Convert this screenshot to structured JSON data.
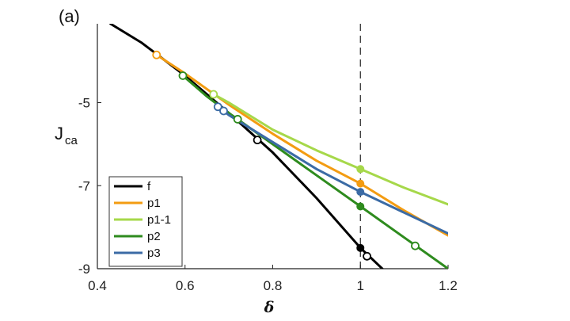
{
  "panel_label": "(a)",
  "chart_data": {
    "type": "line",
    "xlabel": "δ",
    "ylabel": "J",
    "ylabel_subscript": "ca",
    "xlim": [
      0.4,
      1.2
    ],
    "ylim": [
      -9,
      -3.1
    ],
    "xticks": [
      0.4,
      0.6,
      0.8,
      1,
      1.2
    ],
    "xtick_labels": [
      "0.4",
      "0.6",
      "0.8",
      "1",
      "1.2"
    ],
    "yticks": [
      -9,
      -7,
      -5
    ],
    "ytick_labels": [
      "-9",
      "-7",
      "-5"
    ],
    "reference_line": {
      "x": 1,
      "style": "dashed"
    },
    "legend_position": "bottom-left",
    "series": [
      {
        "name": "f",
        "color": "#000000",
        "x": [
          0.43,
          0.5,
          0.6,
          0.7,
          0.8,
          0.9,
          1.0,
          1.05
        ],
        "y": [
          -3.1,
          -3.55,
          -4.35,
          -5.25,
          -6.2,
          -7.3,
          -8.5,
          -9.0
        ],
        "open_markers": [
          {
            "x": 0.765,
            "y": -5.9
          },
          {
            "x": 1.015,
            "y": -8.7
          }
        ],
        "filled_markers": [
          {
            "x": 1.0,
            "y": -8.5
          }
        ]
      },
      {
        "name": "p1",
        "color": "#f39c12",
        "x": [
          0.535,
          0.6,
          0.7,
          0.8,
          0.9,
          1.0,
          1.1,
          1.2
        ],
        "y": [
          -3.85,
          -4.3,
          -5.05,
          -5.75,
          -6.4,
          -6.95,
          -7.6,
          -8.2
        ],
        "open_markers": [
          {
            "x": 0.535,
            "y": -3.85
          }
        ],
        "filled_markers": [
          {
            "x": 1.0,
            "y": -6.95
          }
        ]
      },
      {
        "name": "p1-1",
        "color": "#a6d84a",
        "x": [
          0.665,
          0.7,
          0.8,
          0.9,
          1.0,
          1.1,
          1.2
        ],
        "y": [
          -4.8,
          -5.0,
          -5.65,
          -6.15,
          -6.6,
          -7.05,
          -7.45
        ],
        "open_markers": [
          {
            "x": 0.665,
            "y": -4.8
          }
        ],
        "filled_markers": [
          {
            "x": 1.0,
            "y": -6.6
          }
        ]
      },
      {
        "name": "p2",
        "color": "#2e8b1e",
        "x": [
          0.595,
          0.65,
          0.7,
          0.8,
          0.9,
          1.0,
          1.1,
          1.2
        ],
        "y": [
          -4.35,
          -4.85,
          -5.25,
          -6.0,
          -6.75,
          -7.5,
          -8.25,
          -9.0
        ],
        "open_markers": [
          {
            "x": 0.595,
            "y": -4.35
          },
          {
            "x": 0.72,
            "y": -5.4
          },
          {
            "x": 1.125,
            "y": -8.45
          }
        ],
        "filled_markers": [
          {
            "x": 1.0,
            "y": -7.5
          }
        ]
      },
      {
        "name": "p3",
        "color": "#3b6ba5",
        "x": [
          0.675,
          0.7,
          0.8,
          0.9,
          1.0,
          1.1,
          1.2
        ],
        "y": [
          -5.1,
          -5.3,
          -5.95,
          -6.6,
          -7.15,
          -7.65,
          -8.15
        ],
        "open_markers": [
          {
            "x": 0.675,
            "y": -5.1
          },
          {
            "x": 0.688,
            "y": -5.2
          }
        ],
        "filled_markers": [
          {
            "x": 1.0,
            "y": -7.15
          }
        ]
      }
    ]
  }
}
